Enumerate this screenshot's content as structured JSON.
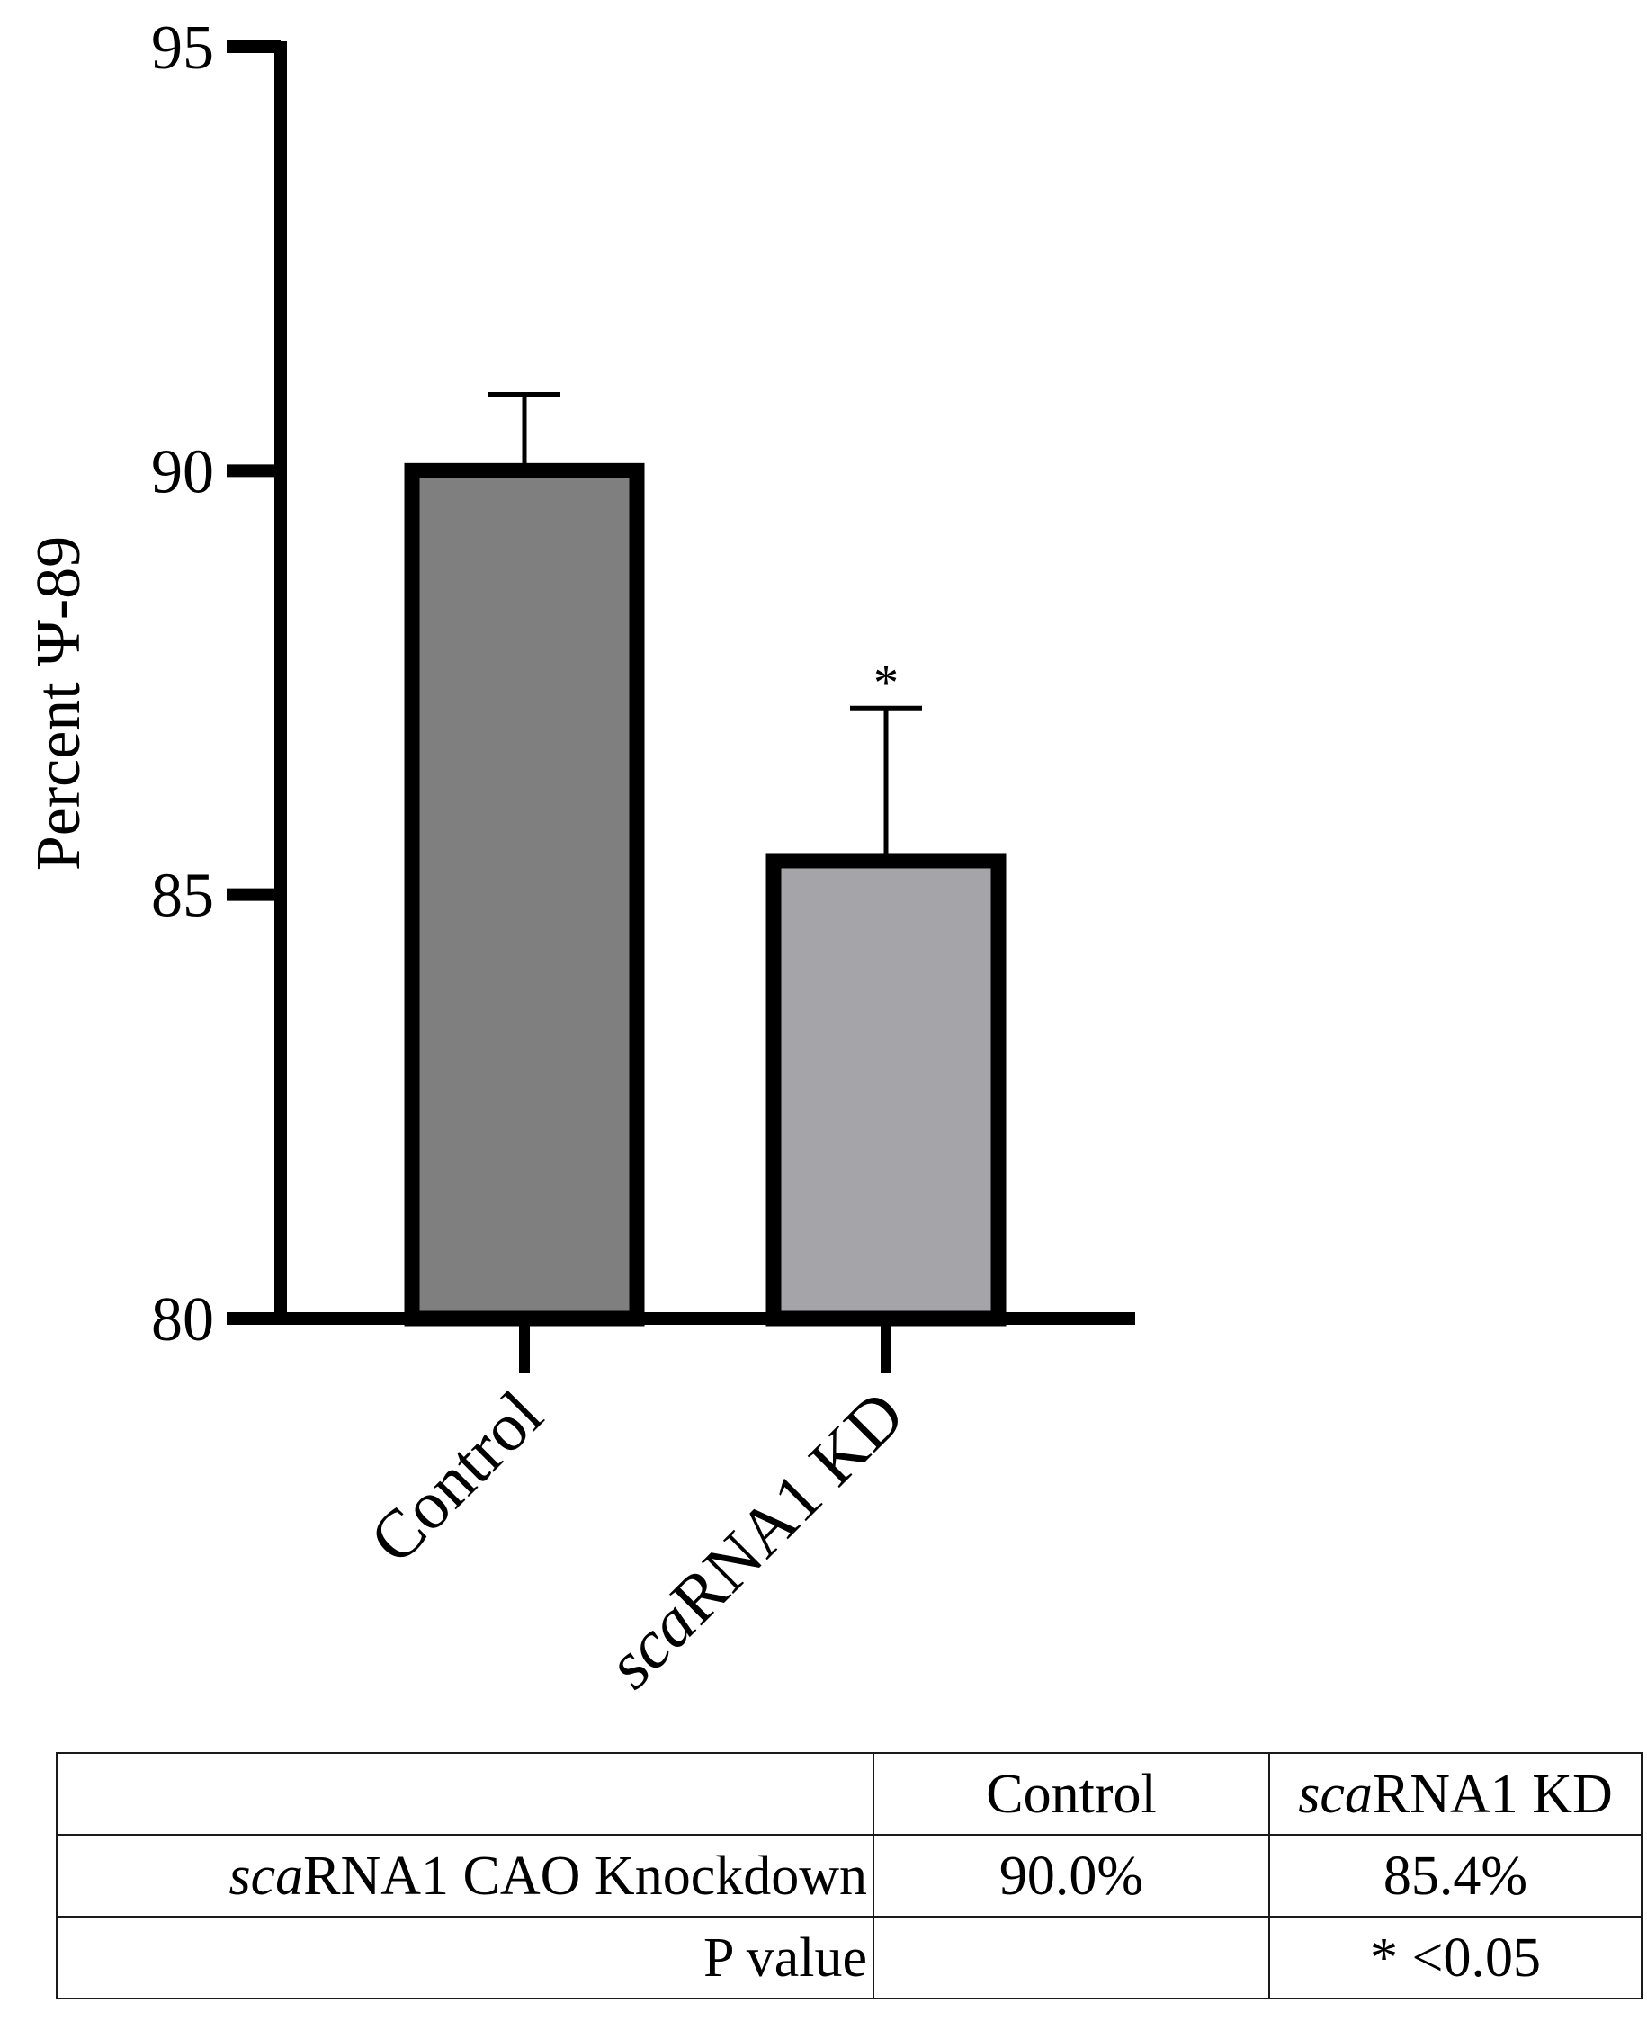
{
  "chart_data": {
    "type": "bar",
    "ylabel": "Percent Ψ-89",
    "ylim": [
      80,
      95
    ],
    "yticks": [
      80,
      85,
      90,
      95
    ],
    "categories": [
      {
        "italic_part": "",
        "rest": "Control"
      },
      {
        "italic_part": "sca",
        "rest": "RNA1 KD"
      }
    ],
    "values": [
      90.0,
      85.4
    ],
    "error_plus": [
      0.9,
      1.8
    ],
    "bar_colors": [
      "#7f7f7f",
      "#a5a4a8"
    ],
    "significance": [
      null,
      "*"
    ],
    "grid": false,
    "legend": "none"
  },
  "table": {
    "header": {
      "blank": "",
      "col1": "Control",
      "col2_italic": "sca",
      "col2_rest": "RNA1 KD"
    },
    "rows": [
      {
        "label_italic": "sca",
        "label_rest": "RNA1 CAO Knockdown",
        "control": "90.0%",
        "kd": "85.4%"
      },
      {
        "label_italic": "",
        "label_rest": "P value",
        "control": "",
        "kd": "* <0.05"
      }
    ]
  }
}
